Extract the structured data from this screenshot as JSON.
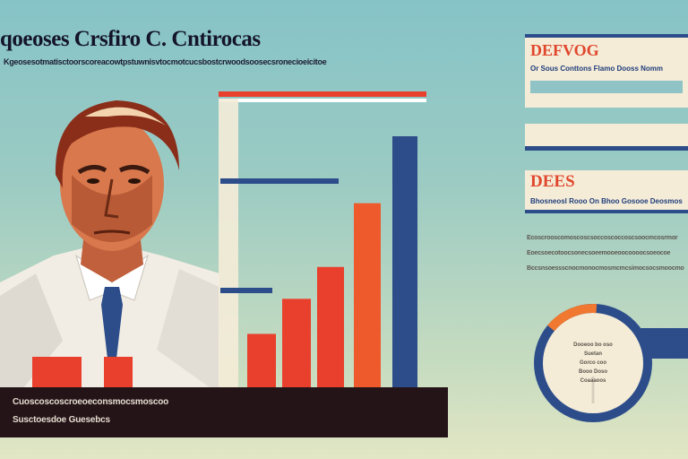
{
  "header": {
    "title": "qoeoses Crsfiro C. Cntirocas",
    "subtitle": "Kgeosesotmatisctoorscoreacowtpstuwnisvtocmotcucsbostcrwoodsoosecsronecioeicitoe"
  },
  "caption": {
    "line1": "Cuoscoscoscroeoeconsmocsmoscoo",
    "line2": "Susctoesdoe Guesebcs"
  },
  "card1": {
    "heading": "DEFVOG",
    "line": "Or Sous Conttons Flamo Dooss Nomm"
  },
  "card2": {
    "heading": "DEES",
    "line": "Bhosneosl Rooo On Bhoo Gosooe Deosmos"
  },
  "text_block": {
    "lines": [
      "Ecoscrooscomoscoscsoccoscoccoscsoocmcosrmor",
      "Eoecsoecotoocsonecsoeemooeoocoooocsoeocoe",
      "Bccsnsoessscnocmonocmosmcmcsimocsocsmoocmo"
    ]
  },
  "donut": {
    "lines": [
      "Dooeoo bo oso",
      "Suetan",
      "Gorco coo",
      "Booo Doso",
      "Coaaaoos"
    ],
    "highlight_fraction": 0.25
  },
  "colors": {
    "red": "#e8402c",
    "orange": "#f07830",
    "navy": "#2c4d8a",
    "cream": "#f5ecd8",
    "dark": "#241418"
  },
  "chart_data": {
    "type": "bar",
    "values": [
      12,
      19,
      30,
      40,
      60,
      81
    ],
    "ylim": [
      0,
      90
    ]
  }
}
